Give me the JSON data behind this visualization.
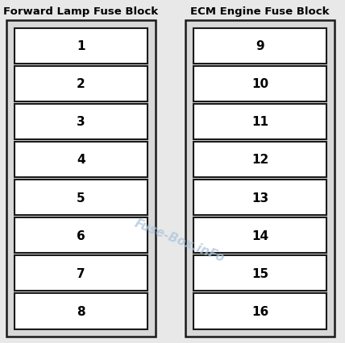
{
  "title_left": "Forward Lamp Fuse Block",
  "title_right": "ECM Engine Fuse Block",
  "left_fuses": [
    "1",
    "2",
    "3",
    "4",
    "5",
    "6",
    "7",
    "8"
  ],
  "right_fuses": [
    "9",
    "10",
    "11",
    "12",
    "13",
    "14",
    "15",
    "16"
  ],
  "background_color": "#e8e8e8",
  "outer_box_face": "#d8d8d8",
  "fuse_face_color": "#ffffff",
  "box_edge_color": "#1a1a1a",
  "text_color": "#000000",
  "watermark_text": "Fuse-Box.inFo",
  "watermark_color": "#aac4dc",
  "title_fontsize": 9.5,
  "fuse_fontsize": 11,
  "watermark_fontsize": 11,
  "fig_width": 4.28,
  "fig_height": 4.27,
  "dpi": 100
}
